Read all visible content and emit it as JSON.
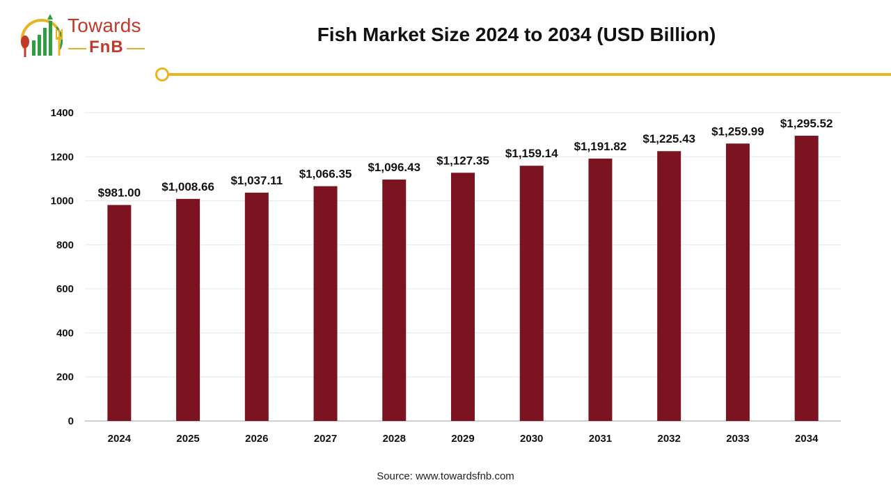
{
  "header": {
    "logo_line1": "Towards",
    "logo_line2": "FnB",
    "title": "Fish Market Size 2024 to 2034 (USD Billion)"
  },
  "footer": {
    "source": "Source: www.towardsfnb.com"
  },
  "colors": {
    "bar": "#7b1420",
    "accent": "#e8b420",
    "logo_red": "#c0392b",
    "logo_green": "#2e9e3e"
  },
  "chart_data": {
    "type": "bar",
    "title": "Fish Market Size 2024 to 2034 (USD Billion)",
    "categories": [
      "2024",
      "2025",
      "2026",
      "2027",
      "2028",
      "2029",
      "2030",
      "2031",
      "2032",
      "2033",
      "2034"
    ],
    "values": [
      981.0,
      1008.66,
      1037.11,
      1066.35,
      1096.43,
      1127.35,
      1159.14,
      1191.82,
      1225.43,
      1259.99,
      1295.52
    ],
    "data_labels": [
      "$981.00",
      "$1,008.66",
      "$1,037.11",
      "$1,066.35",
      "$1,096.43",
      "$1,127.35",
      "$1,159.14",
      "$1,191.82",
      "$1,225.43",
      "$1,259.99",
      "$1,295.52"
    ],
    "ylim": [
      0,
      1400
    ],
    "yticks": [
      0,
      200,
      400,
      600,
      800,
      1000,
      1200,
      1400
    ],
    "xlabel": "",
    "ylabel": "",
    "grid": true,
    "legend": "none"
  }
}
